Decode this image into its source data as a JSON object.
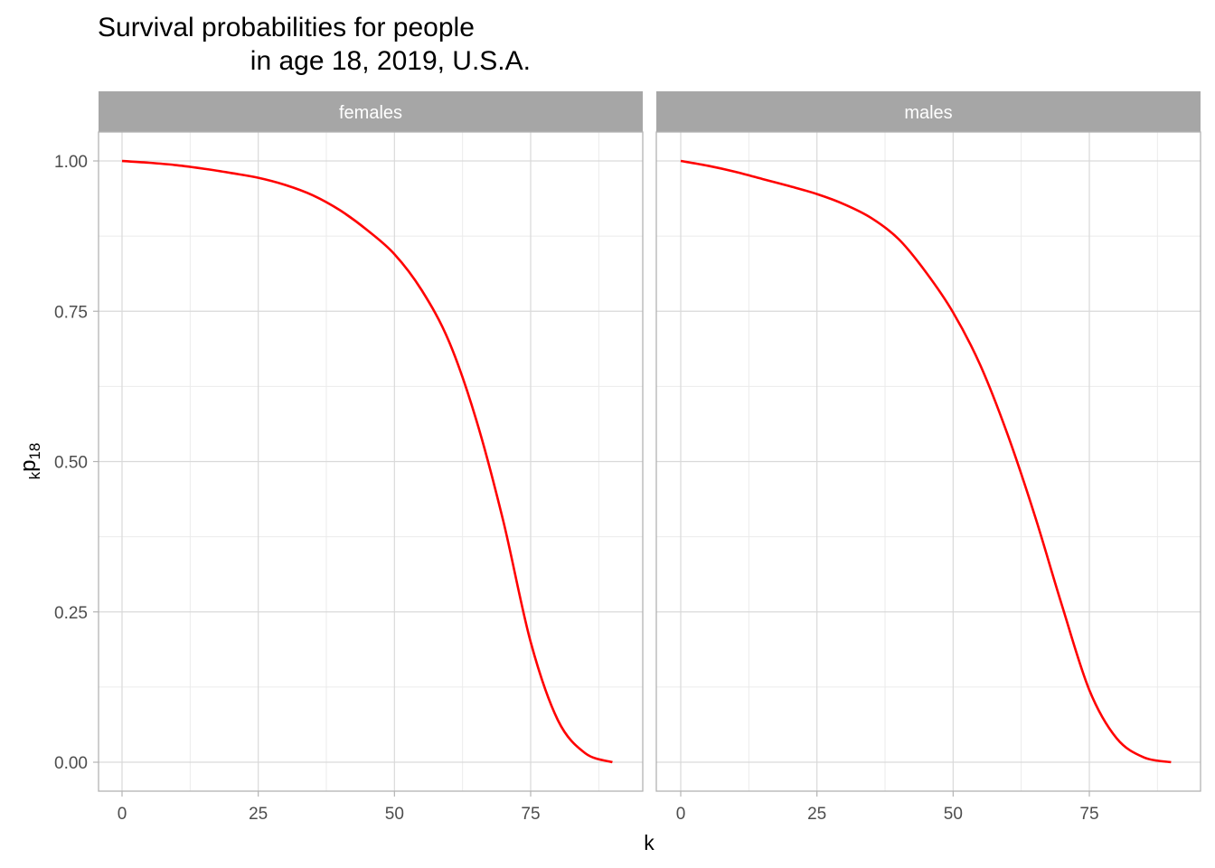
{
  "chart_data": {
    "type": "line",
    "title": "Survival probabilities for people",
    "title_line2": "in age 18, 2019, U.S.A.",
    "xlabel": "k",
    "ylabel": "kp18",
    "ylabel_parts": {
      "pre": "k",
      "main": "p",
      "sub": "18"
    },
    "xlim": [
      0,
      90
    ],
    "ylim": [
      0,
      1
    ],
    "x_ticks": [
      0,
      25,
      50,
      75
    ],
    "y_ticks": [
      0,
      0.25,
      0.5,
      0.75,
      1
    ],
    "y_tick_labels": [
      "0.00",
      "0.25",
      "0.50",
      "0.75",
      "1.00"
    ],
    "grid": true,
    "line_color": "#ff0000",
    "strip_color": "#a6a6a6",
    "panels": [
      {
        "label": "females",
        "x": [
          0,
          5,
          10,
          15,
          20,
          25,
          30,
          35,
          40,
          45,
          50,
          55,
          60,
          65,
          70,
          75,
          80,
          85,
          90
        ],
        "y": [
          1.0,
          0.997,
          0.993,
          0.987,
          0.98,
          0.972,
          0.96,
          0.943,
          0.918,
          0.885,
          0.845,
          0.785,
          0.7,
          0.57,
          0.4,
          0.2,
          0.07,
          0.015,
          0.0
        ]
      },
      {
        "label": "males",
        "x": [
          0,
          5,
          10,
          15,
          20,
          25,
          30,
          35,
          40,
          45,
          50,
          55,
          60,
          65,
          70,
          75,
          80,
          85,
          90
        ],
        "y": [
          1.0,
          0.992,
          0.982,
          0.97,
          0.958,
          0.945,
          0.928,
          0.905,
          0.87,
          0.815,
          0.748,
          0.66,
          0.545,
          0.41,
          0.26,
          0.12,
          0.04,
          0.008,
          0.0
        ]
      }
    ]
  }
}
